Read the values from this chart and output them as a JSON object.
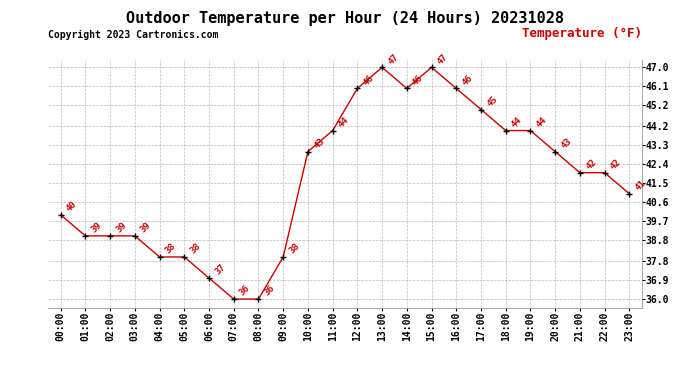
{
  "title": "Outdoor Temperature per Hour (24 Hours) 20231028",
  "copyright": "Copyright 2023 Cartronics.com",
  "legend_label": "Temperature (°F)",
  "hours": [
    "00:00",
    "01:00",
    "02:00",
    "03:00",
    "04:00",
    "05:00",
    "06:00",
    "07:00",
    "08:00",
    "09:00",
    "10:00",
    "11:00",
    "12:00",
    "13:00",
    "14:00",
    "15:00",
    "16:00",
    "17:00",
    "18:00",
    "19:00",
    "20:00",
    "21:00",
    "22:00",
    "23:00"
  ],
  "temperatures": [
    40,
    39,
    39,
    39,
    38,
    38,
    37,
    36,
    36,
    38,
    43,
    44,
    46,
    47,
    46,
    47,
    46,
    45,
    44,
    44,
    43,
    42,
    42,
    41
  ],
  "y_ticks": [
    36.0,
    36.9,
    37.8,
    38.8,
    39.7,
    40.6,
    41.5,
    42.4,
    43.3,
    44.2,
    45.2,
    46.1,
    47.0
  ],
  "ylim_min": 35.6,
  "ylim_max": 47.35,
  "line_color": "#cc0000",
  "marker_color": "#000000",
  "title_fontsize": 11,
  "copyright_fontsize": 7,
  "legend_fontsize": 9,
  "tick_fontsize": 7,
  "bg_color": "#ffffff",
  "grid_color": "#bbbbbb",
  "annotation_color": "#cc0000",
  "annotation_fontsize": 6.5
}
